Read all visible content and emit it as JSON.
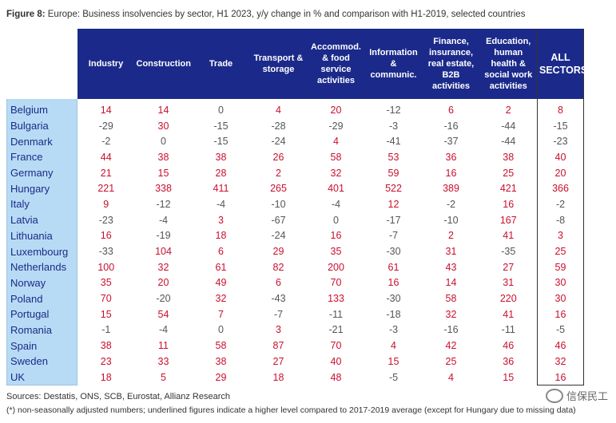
{
  "title": {
    "label": "Figure 8:",
    "text": " Europe: Business insolvencies by sector, H1 2023, y/y change in % and comparison with H1-2019, selected countries"
  },
  "columns": [
    "Industry",
    "Construction",
    "Trade",
    "Transport & storage",
    "Accommod. & food service activities",
    "Information & communic.",
    "Finance, insurance, real estate, B2B activities",
    "Education, human health & social work activities",
    "ALL SECTORS"
  ],
  "rows": [
    {
      "country": "Belgium",
      "values": [
        14,
        14,
        0,
        4,
        20,
        -12,
        6,
        2,
        8
      ]
    },
    {
      "country": "Bulgaria",
      "values": [
        -29,
        30,
        -15,
        -28,
        -29,
        -3,
        -16,
        -44,
        -15
      ]
    },
    {
      "country": "Denmark",
      "values": [
        -2,
        0,
        -15,
        -24,
        4,
        -41,
        -37,
        -44,
        -23
      ]
    },
    {
      "country": "France",
      "values": [
        44,
        38,
        38,
        26,
        58,
        53,
        36,
        38,
        40
      ]
    },
    {
      "country": "Germany",
      "values": [
        21,
        15,
        28,
        2,
        32,
        59,
        16,
        25,
        20
      ]
    },
    {
      "country": "Hungary",
      "values": [
        221,
        338,
        411,
        265,
        401,
        522,
        389,
        421,
        366
      ]
    },
    {
      "country": "Italy",
      "values": [
        9,
        -12,
        -4,
        -10,
        -4,
        12,
        -2,
        16,
        -2
      ]
    },
    {
      "country": "Latvia",
      "values": [
        -23,
        -4,
        3,
        -67,
        0,
        -17,
        -10,
        167,
        -8
      ]
    },
    {
      "country": "Lithuania",
      "values": [
        16,
        -19,
        18,
        -24,
        16,
        -7,
        2,
        41,
        3
      ]
    },
    {
      "country": "Luxembourg",
      "values": [
        -33,
        104,
        6,
        29,
        35,
        -30,
        31,
        -35,
        25
      ]
    },
    {
      "country": "Netherlands",
      "values": [
        100,
        32,
        61,
        82,
        200,
        61,
        43,
        27,
        59
      ]
    },
    {
      "country": "Norway",
      "values": [
        35,
        20,
        49,
        6,
        70,
        16,
        14,
        31,
        30
      ]
    },
    {
      "country": "Poland",
      "values": [
        70,
        -20,
        32,
        -43,
        133,
        -30,
        58,
        220,
        30
      ]
    },
    {
      "country": "Portugal",
      "values": [
        15,
        54,
        7,
        -7,
        -11,
        -18,
        32,
        41,
        16
      ]
    },
    {
      "country": "Romania",
      "values": [
        -1,
        -4,
        0,
        3,
        -21,
        -3,
        -16,
        -11,
        -5
      ]
    },
    {
      "country": "Spain",
      "values": [
        38,
        11,
        58,
        87,
        70,
        4,
        42,
        46,
        46
      ]
    },
    {
      "country": "Sweden",
      "values": [
        23,
        33,
        38,
        27,
        40,
        15,
        25,
        36,
        32
      ]
    },
    {
      "country": "UK",
      "values": [
        18,
        5,
        29,
        18,
        48,
        -5,
        4,
        15,
        16
      ]
    }
  ],
  "colors": {
    "header_bg": "#1b2a8a",
    "country_bg": "#b7dbf4",
    "positive": "#c8102e",
    "non_positive": "#555555"
  },
  "footer": {
    "sources": "Sources: Destatis, ONS, SCB, Eurostat, Allianz Research",
    "note": "(*) non-seasonally adjusted numbers; underlined figures indicate a higher level compared to 2017-2019 average (except for Hungary due to missing data)"
  },
  "watermark": {
    "text": "信保民工",
    "icon": "wechat-logo-icon"
  }
}
